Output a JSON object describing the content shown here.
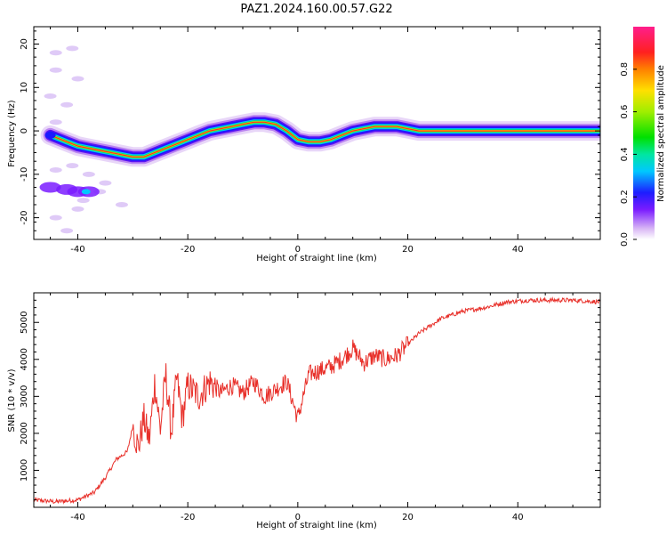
{
  "title": "PAZ1.2024.160.00.57.G22",
  "chart_data": [
    {
      "type": "heatmap",
      "xlabel": "Height of straight line (km)",
      "ylabel": "Frequency (Hz)",
      "xlim": [
        -48,
        55
      ],
      "ylim": [
        -25,
        24
      ],
      "xticks": [
        -40,
        -20,
        0,
        20,
        40
      ],
      "yticks": [
        -20,
        -10,
        0,
        10,
        20
      ],
      "colorbar": {
        "label": "Normalized spectral amplitude",
        "range": [
          0,
          1
        ],
        "ticks": [
          0.0,
          0.2,
          0.4,
          0.6,
          0.8
        ]
      },
      "ridge": {
        "x": [
          -45,
          -42,
          -40,
          -38,
          -36,
          -34,
          -32,
          -30,
          -28,
          -26,
          -24,
          -22,
          -20,
          -18,
          -16,
          -14,
          -12,
          -10,
          -8,
          -6,
          -4,
          -2,
          0,
          2,
          4,
          6,
          8,
          10,
          12,
          14,
          16,
          18,
          20,
          22,
          24,
          26,
          28,
          55
        ],
        "y": [
          -1,
          -2.5,
          -3.5,
          -4,
          -4.5,
          -5,
          -5.5,
          -6,
          -6,
          -5,
          -4,
          -3,
          -2,
          -1,
          0,
          0.5,
          1,
          1.5,
          2,
          2,
          1.5,
          0,
          -2,
          -2.5,
          -2.5,
          -2,
          -1,
          0,
          0.5,
          1,
          1,
          1,
          0.5,
          0,
          0,
          0,
          0,
          0
        ]
      },
      "secondary_blob": {
        "x": [
          -45,
          -42,
          -40,
          -38
        ],
        "y": [
          -13,
          -13.5,
          -14,
          -14
        ]
      }
    },
    {
      "type": "line",
      "xlabel": "Height of straight line (km)",
      "ylabel": "SNR (10 * v/v)",
      "xlim": [
        -48,
        55
      ],
      "ylim": [
        0,
        5800
      ],
      "xticks": [
        -40,
        -20,
        0,
        20,
        40
      ],
      "yticks": [
        1000,
        2000,
        3000,
        4000,
        5000
      ],
      "color": "#e8302a",
      "series": [
        {
          "x": [
            -48,
            -44,
            -40,
            -37,
            -35,
            -33,
            -31,
            -30,
            -29,
            -28,
            -27,
            -26,
            -25,
            -24,
            -23,
            -22,
            -21,
            -20,
            -18,
            -16,
            -14,
            -12,
            -10,
            -8,
            -6,
            -4,
            -2,
            0,
            2,
            4,
            6,
            8,
            10,
            12,
            14,
            16,
            18,
            20,
            22,
            24,
            26,
            28,
            30,
            34,
            38,
            42,
            46,
            50,
            55
          ],
          "y": [
            200,
            150,
            200,
            400,
            800,
            1300,
            1500,
            2200,
            1600,
            2400,
            1800,
            3400,
            2100,
            3600,
            2000,
            3500,
            2400,
            3300,
            3000,
            3400,
            3100,
            3300,
            3100,
            3400,
            3000,
            3200,
            3400,
            2400,
            3600,
            3700,
            3800,
            4000,
            4300,
            3900,
            4100,
            4000,
            4100,
            4400,
            4700,
            4900,
            5100,
            5200,
            5300,
            5400,
            5550,
            5600,
            5600,
            5600,
            5550
          ]
        }
      ]
    }
  ]
}
